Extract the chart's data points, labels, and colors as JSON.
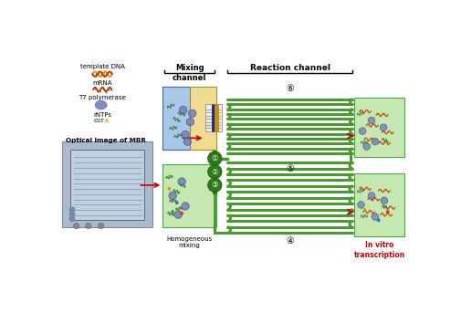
{
  "bg_color": "#ffffff",
  "mixing_channel_label": "Mixing\nchannel",
  "reaction_channel_label": "Reaction channel",
  "homogeneous_label": "Homogeneous\nmixing",
  "in_vitro_label": "In vitro\ntranscription",
  "optical_label": "Optical image of MBR",
  "circle_labels": [
    "①",
    "②",
    "③"
  ],
  "channel_labels": [
    "⑥",
    "⑤",
    "④"
  ],
  "green_channel_color": "#4a9a30",
  "green_bg_color": "#c5e8b0",
  "blue_bg_color": "#a8c8e8",
  "yellow_bg_color": "#f0dc90",
  "dark_green_circle": "#2d7a18",
  "red_color": "#cc0000",
  "blue_inlet_color": "#1a2a8a",
  "yellow_inlet_color": "#c89000",
  "t7_color": "#7080b8",
  "dna_color1": "#d4a000",
  "dna_color2": "#cc3300",
  "mrna_color": "#cc3300"
}
